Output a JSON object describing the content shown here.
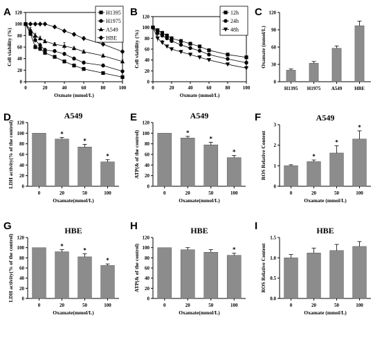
{
  "chart_data": [
    {
      "panel": "A",
      "type": "line",
      "xlabel": "Oxmate (mmol/L)",
      "ylabel": "Cell viability (%)",
      "xlim": [
        0,
        100
      ],
      "ylim": [
        0,
        120
      ],
      "xticks": [
        0,
        20,
        40,
        60,
        80,
        100
      ],
      "yticks": [
        0,
        20,
        40,
        60,
        80,
        100,
        120
      ],
      "legend": "top-right",
      "series": [
        {
          "name": "H1395",
          "marker": "square",
          "x": [
            0,
            5,
            10,
            15,
            20,
            30,
            40,
            50,
            60,
            80,
            100
          ],
          "y": [
            100,
            83,
            60,
            57,
            50,
            43,
            35,
            28,
            22,
            15,
            8
          ],
          "err": [
            2,
            4,
            4,
            4,
            3,
            3,
            3,
            3,
            3,
            2,
            2
          ]
        },
        {
          "name": "H1975",
          "marker": "circle",
          "x": [
            0,
            5,
            10,
            15,
            20,
            30,
            40,
            50,
            60,
            80,
            100
          ],
          "y": [
            100,
            85,
            72,
            63,
            55,
            53,
            48,
            40,
            33,
            28,
            18
          ],
          "err": [
            2,
            4,
            4,
            4,
            3,
            3,
            3,
            3,
            3,
            3,
            2
          ]
        },
        {
          "name": "A549",
          "marker": "triangle",
          "x": [
            0,
            5,
            10,
            15,
            20,
            30,
            40,
            50,
            60,
            80,
            100
          ],
          "y": [
            100,
            90,
            80,
            75,
            70,
            65,
            62,
            58,
            52,
            45,
            35
          ],
          "err": [
            2,
            4,
            4,
            4,
            3,
            3,
            6,
            3,
            3,
            3,
            3
          ]
        },
        {
          "name": "HBE",
          "marker": "diamond",
          "x": [
            0,
            5,
            10,
            15,
            20,
            30,
            40,
            50,
            60,
            80,
            100
          ],
          "y": [
            100,
            100,
            100,
            100,
            100,
            95,
            88,
            82,
            75,
            65,
            52
          ],
          "err": [
            1,
            1,
            1,
            1,
            1,
            2,
            2,
            3,
            3,
            3,
            3
          ]
        }
      ]
    },
    {
      "panel": "B",
      "type": "line",
      "xlabel": "Oxmate (mmol/L)",
      "ylabel": "Cell viability (%)",
      "xlim": [
        0,
        100
      ],
      "ylim": [
        0,
        120
      ],
      "xticks": [
        0,
        20,
        40,
        60,
        80,
        100
      ],
      "yticks": [
        0,
        20,
        40,
        60,
        80,
        100,
        120
      ],
      "legend": "top-right",
      "series": [
        {
          "name": "12h",
          "marker": "square",
          "x": [
            0,
            5,
            10,
            15,
            20,
            30,
            40,
            50,
            60,
            80,
            100
          ],
          "y": [
            100,
            95,
            90,
            85,
            80,
            75,
            70,
            65,
            58,
            50,
            45
          ],
          "err": [
            2,
            3,
            3,
            3,
            3,
            3,
            3,
            3,
            3,
            3,
            3
          ]
        },
        {
          "name": "24h",
          "marker": "circle",
          "x": [
            0,
            5,
            10,
            15,
            20,
            30,
            40,
            50,
            60,
            80,
            100
          ],
          "y": [
            100,
            90,
            85,
            80,
            75,
            68,
            62,
            57,
            50,
            42,
            35
          ],
          "err": [
            2,
            3,
            3,
            3,
            3,
            3,
            3,
            3,
            3,
            3,
            3
          ]
        },
        {
          "name": "48h",
          "marker": "triangle-down",
          "x": [
            0,
            5,
            10,
            15,
            20,
            30,
            40,
            50,
            60,
            80,
            100
          ],
          "y": [
            100,
            80,
            72,
            65,
            60,
            55,
            50,
            45,
            40,
            32,
            25
          ],
          "err": [
            2,
            6,
            4,
            3,
            3,
            3,
            3,
            3,
            3,
            3,
            3
          ]
        }
      ]
    },
    {
      "panel": "C",
      "type": "bar",
      "ylabel": "Oxamate  (mmol/L)",
      "categories": [
        "H1395",
        "H1975",
        "A549",
        "HBE"
      ],
      "values": [
        20,
        32,
        58,
        97
      ],
      "err": [
        2,
        3,
        4,
        8
      ],
      "ylim": [
        0,
        120
      ],
      "yticks": [
        0,
        30,
        60,
        90,
        120
      ]
    },
    {
      "panel": "D",
      "type": "bar",
      "title": "A549",
      "xlabel": "Oxamate(mmol/L)",
      "ylabel": "LDH activity(% of the control)",
      "categories": [
        "0",
        "20",
        "50",
        "100"
      ],
      "values": [
        100,
        89,
        74,
        46
      ],
      "err": [
        0,
        3,
        5,
        4
      ],
      "stars": [
        false,
        true,
        true,
        true
      ],
      "ylim": [
        0,
        120
      ],
      "yticks": [
        0,
        20,
        40,
        60,
        80,
        100,
        120
      ]
    },
    {
      "panel": "E",
      "type": "bar",
      "title": "A549",
      "xlabel": "Oxamate(mmol/L)",
      "ylabel": "ATP(& of the control)",
      "categories": [
        "0",
        "20",
        "50",
        "100"
      ],
      "values": [
        100,
        91,
        78,
        54
      ],
      "err": [
        0,
        3,
        5,
        4
      ],
      "stars": [
        false,
        true,
        true,
        true
      ],
      "ylim": [
        0,
        120
      ],
      "yticks": [
        0,
        20,
        40,
        60,
        80,
        100,
        120
      ]
    },
    {
      "panel": "F",
      "type": "bar",
      "title": "A549",
      "xlabel": "Oxamate (mmol/L)",
      "ylabel": "ROS Relative Content",
      "categories": [
        "0",
        "20",
        "50",
        "100"
      ],
      "values": [
        1.0,
        1.2,
        1.62,
        2.3
      ],
      "err": [
        0.05,
        0.08,
        0.35,
        0.4
      ],
      "stars": [
        false,
        true,
        true,
        true
      ],
      "ylim": [
        0,
        3
      ],
      "yticks": [
        0,
        1,
        2,
        3
      ]
    },
    {
      "panel": "G",
      "type": "bar",
      "title": "HBE",
      "xlabel": "Oxamate(mmol/L)",
      "ylabel": "LDH activity(% of the control)",
      "categories": [
        "0",
        "20",
        "50",
        "100"
      ],
      "values": [
        100,
        92,
        82,
        65
      ],
      "err": [
        0,
        4,
        6,
        3
      ],
      "stars": [
        false,
        true,
        true,
        true
      ],
      "ylim": [
        0,
        120
      ],
      "yticks": [
        0,
        20,
        40,
        60,
        80,
        100,
        120
      ]
    },
    {
      "panel": "H",
      "type": "bar",
      "title": "HBE",
      "xlabel": "Oxamate(mmol/L)",
      "ylabel": "ATP(& of the control)",
      "categories": [
        "0",
        "20",
        "50",
        "100"
      ],
      "values": [
        100,
        96,
        91,
        85
      ],
      "err": [
        0,
        4,
        5,
        4
      ],
      "stars": [
        false,
        false,
        false,
        true
      ],
      "ylim": [
        0,
        120
      ],
      "yticks": [
        0,
        20,
        40,
        60,
        80,
        100,
        120
      ]
    },
    {
      "panel": "I",
      "type": "bar",
      "title": "HBE",
      "xlabel": "Oxamate (mmol/L)",
      "ylabel": "ROS Relative Content",
      "categories": [
        "0",
        "20",
        "50",
        "100"
      ],
      "values": [
        1.0,
        1.12,
        1.18,
        1.28
      ],
      "err": [
        0.08,
        0.12,
        0.15,
        0.12
      ],
      "stars": [
        false,
        false,
        false,
        false
      ],
      "ylim": [
        0,
        1.5
      ],
      "yticks": [
        0.0,
        0.5,
        1.0,
        1.5
      ]
    }
  ]
}
